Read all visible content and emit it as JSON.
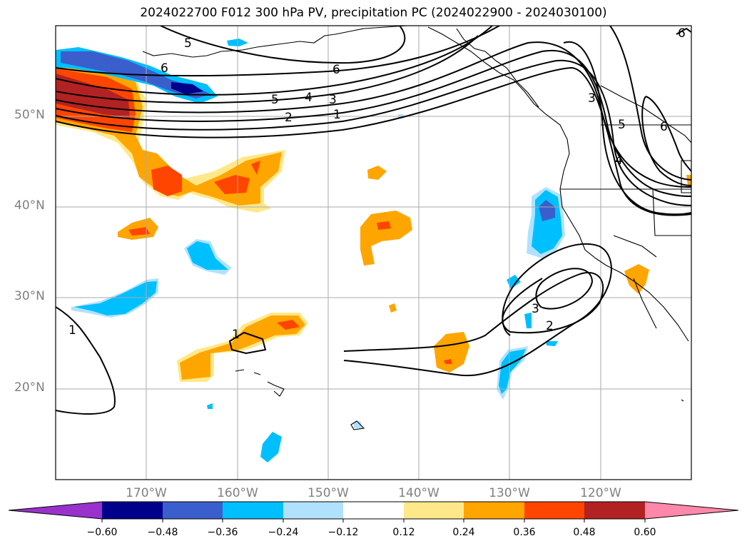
{
  "title": "2024022700 F012 300 hPa PV, precipitation PC (2024022900 - 2024030100)",
  "lat_labels": [
    {
      "label": "50°N",
      "value": 50
    },
    {
      "label": "40°N",
      "value": 40
    },
    {
      "label": "30°N",
      "value": 30
    },
    {
      "label": "20°N",
      "value": 20
    }
  ],
  "lon_labels": [
    {
      "label": "170°W",
      "value": -170
    },
    {
      "label": "160°W",
      "value": -160
    },
    {
      "label": "150°W",
      "value": -150
    },
    {
      "label": "140°W",
      "value": -140
    },
    {
      "label": "130°W",
      "value": -130
    },
    {
      "label": "120°W",
      "value": -120
    }
  ],
  "map_extent": {
    "lon": [
      -180,
      -110
    ],
    "lat": [
      10,
      60
    ]
  },
  "colorbar": {
    "ticks": [
      "−0.60",
      "−0.48",
      "−0.36",
      "−0.24",
      "−0.12",
      "0.12",
      "0.24",
      "0.36",
      "0.48",
      "0.60"
    ],
    "colors": [
      "#9932cc",
      "#00008b",
      "#3a5fcd",
      "#00bfff",
      "#b0e2ff",
      "#ffffff",
      "#ffe88a",
      "#ffa500",
      "#ff4500",
      "#b22222",
      "#ff88aa"
    ]
  },
  "contour_labels": [
    "5",
    "6",
    "6",
    "5",
    "4",
    "3",
    "2",
    "1",
    "3",
    "5",
    "6",
    "4",
    "3",
    "2",
    "1",
    "1",
    "6"
  ]
}
